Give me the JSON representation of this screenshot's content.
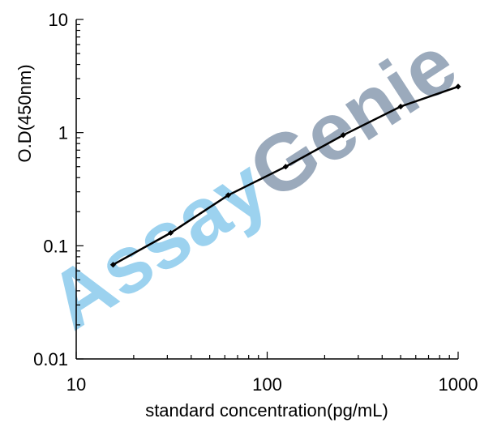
{
  "watermark": {
    "part1": "Assay",
    "part2": "Genie",
    "color1": "#7cc4ea",
    "color2": "#7a8ea6"
  },
  "chart_data": {
    "type": "line",
    "title": "",
    "xlabel": "standard concentration(pg/mL)",
    "ylabel": "O.D(450nm)",
    "x_scale": "log",
    "y_scale": "log",
    "xlim": [
      10,
      1000
    ],
    "ylim": [
      0.01,
      10
    ],
    "x_ticks": [
      10,
      100,
      1000
    ],
    "x_tick_labels": [
      "10",
      "100",
      "1000"
    ],
    "y_ticks": [
      0.01,
      0.1,
      1,
      10
    ],
    "y_tick_labels": [
      "0.01",
      "0.1",
      "1",
      "10"
    ],
    "grid": false,
    "legend": "none",
    "line_color": "#000000",
    "series": [
      {
        "x": [
          15.6,
          31.25,
          62.5,
          125,
          250,
          500,
          1000
        ],
        "y": [
          0.068,
          0.13,
          0.28,
          0.5,
          0.95,
          1.7,
          2.55
        ]
      }
    ]
  }
}
